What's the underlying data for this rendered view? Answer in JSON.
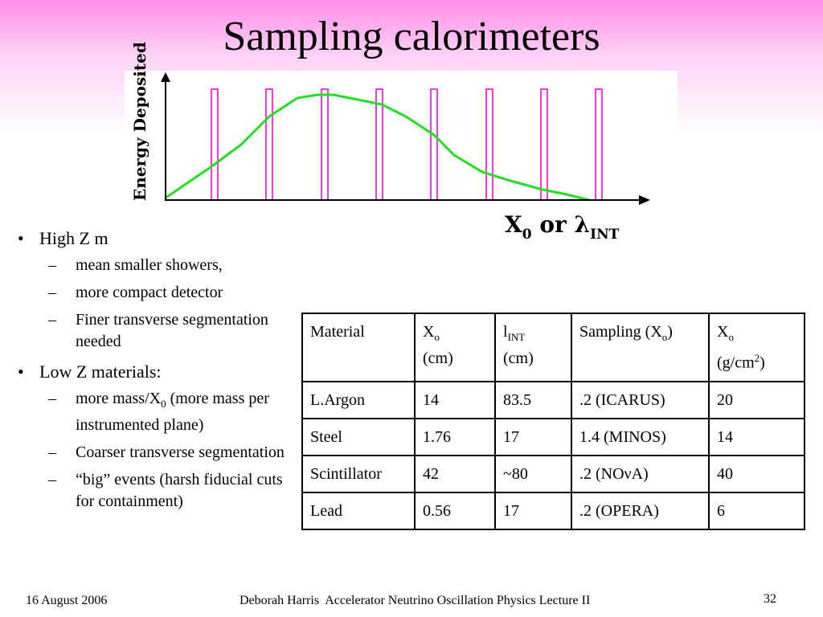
{
  "slide": {
    "title": "Sampling calorimeters",
    "accent_color": "#ff8ce8"
  },
  "plot": {
    "ylabel": "Energy Deposited",
    "xlabel_main": "X",
    "xlabel_sub": "0",
    "xlabel_or": " or ",
    "xlabel_lambda": "λ",
    "xlabel_int": "INT",
    "curve_color": "#22dd22",
    "sampling_color": "#ff33dd"
  },
  "bullets": {
    "b1": "High Z m",
    "b1_sub1": "mean smaller showers,",
    "b1_sub2": "more compact detector",
    "b1_sub3": "Finer transverse segmentation needed",
    "b2": "Low Z materials:",
    "b2_sub1_a": "more mass/X",
    "b2_sub1_sub": "0",
    "b2_sub1_b": " (more mass per instrumented plane)",
    "b2_sub2": "Coarser transverse segmentation",
    "b2_sub3": "“big” events (harsh fiducial cuts for containment)",
    "bullet_marker": "•",
    "dash_marker": "–"
  },
  "table": {
    "header": {
      "material": "Material",
      "xo": "X",
      "xo_sub": "o",
      "xo_unit": "(cm)",
      "lint": "l",
      "lint_sub": "INT",
      "lint_unit": "(cm)",
      "sampling": "Sampling (X",
      "sampling_sub": "o",
      "sampling_close": ")",
      "xo2": "X",
      "xo2_sub": "o",
      "xo2_unit_a": "(g/cm",
      "xo2_unit_sup": "2",
      "xo2_unit_b": ")"
    },
    "rows": [
      {
        "material": "L.Argon",
        "xo": "14",
        "lint": "83.5",
        "sampling": ".2 (ICARUS)",
        "xo_g": "20"
      },
      {
        "material": "Steel",
        "xo": "1.76",
        "lint": "17",
        "sampling": "1.4 (MINOS)",
        "xo_g": "14"
      },
      {
        "material": "Scintillator",
        "xo": "42",
        "lint": "~80",
        "sampling": ".2 (NOνA)",
        "xo_g": "40"
      },
      {
        "material": "Lead",
        "xo": "0.56",
        "lint": "17",
        "sampling": ".2 (OPERA)",
        "xo_g": "6"
      }
    ]
  },
  "footer": {
    "date": "16 August 2006",
    "center": "Deborah Harris  Accelerator Neutrino Oscillation Physics Lecture II",
    "page": "32"
  }
}
